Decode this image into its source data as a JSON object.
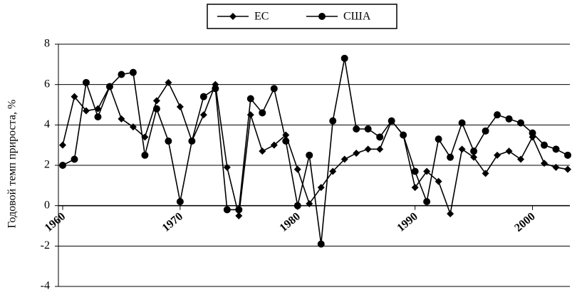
{
  "chart_data": {
    "type": "line",
    "y_label": "Годовой темп прироста, %",
    "x": [
      1960,
      1961,
      1962,
      1963,
      1964,
      1965,
      1966,
      1967,
      1968,
      1969,
      1970,
      1971,
      1972,
      1973,
      1974,
      1975,
      1976,
      1977,
      1978,
      1979,
      1980,
      1981,
      1982,
      1983,
      1984,
      1985,
      1986,
      1987,
      1988,
      1989,
      1990,
      1991,
      1992,
      1993,
      1994,
      1995,
      1996,
      1997,
      1998,
      1999,
      2000,
      2001,
      2002,
      2003
    ],
    "series": [
      {
        "name": "ЕС",
        "color": "#000000",
        "marker": "diamond",
        "values": [
          3.0,
          5.4,
          4.7,
          4.8,
          5.9,
          4.3,
          3.9,
          3.4,
          5.2,
          6.1,
          4.9,
          3.2,
          4.5,
          6.0,
          1.9,
          -0.5,
          4.5,
          2.7,
          3.0,
          3.5,
          1.8,
          0.1,
          0.9,
          1.7,
          2.3,
          2.6,
          2.8,
          2.8,
          4.2,
          3.5,
          0.9,
          1.7,
          1.2,
          -0.4,
          2.8,
          2.4,
          1.6,
          2.5,
          2.7,
          2.3,
          3.4,
          2.1,
          1.9,
          1.8
        ]
      },
      {
        "name": "США",
        "color": "#000000",
        "marker": "circle",
        "values": [
          2.0,
          2.3,
          6.1,
          4.4,
          5.9,
          6.5,
          6.6,
          2.5,
          4.8,
          3.2,
          0.2,
          3.2,
          5.4,
          5.8,
          -0.2,
          -0.2,
          5.3,
          4.6,
          5.8,
          3.2,
          0.0,
          2.5,
          -1.9,
          4.2,
          7.3,
          3.8,
          3.8,
          3.4,
          4.2,
          3.5,
          1.7,
          0.2,
          3.3,
          2.4,
          4.1,
          2.7,
          3.7,
          4.5,
          4.3,
          4.1,
          3.6,
          3.0,
          2.8,
          2.5
        ]
      }
    ],
    "xlim": [
      1960,
      2003
    ],
    "xticks": [
      1960,
      1970,
      1980,
      1990,
      2000
    ],
    "ylim": [
      -4,
      8
    ],
    "yticks": [
      -4,
      -2,
      0,
      2,
      4,
      6,
      8
    ],
    "grid": true,
    "legend": "top"
  }
}
